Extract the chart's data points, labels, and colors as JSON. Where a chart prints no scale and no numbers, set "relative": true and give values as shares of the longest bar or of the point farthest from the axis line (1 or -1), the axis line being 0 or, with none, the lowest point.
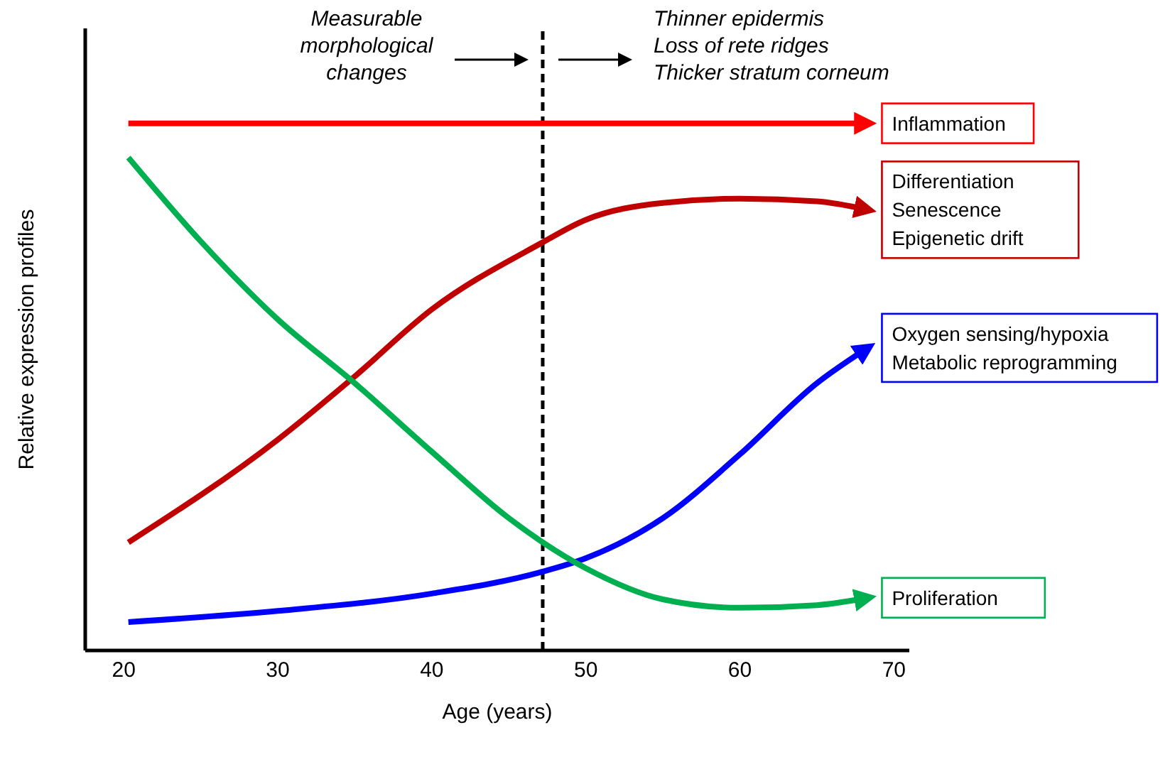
{
  "chart_data": {
    "type": "line",
    "relative": true,
    "xlabel": "Age (years)",
    "ylabel": "Relative expression profiles",
    "xlim": [
      17.5,
      71
    ],
    "xticks": [
      20,
      30,
      40,
      50,
      60,
      70
    ],
    "marker": "none",
    "line_style": "solid",
    "ref_lines": [
      {
        "axis": "x",
        "value": 47.2,
        "color": "#000000",
        "line_style": "dashed"
      }
    ],
    "annotations": [
      "Measurable\nmorphological\nchanges",
      "Thinner epidermis\nLoss of rete ridges\nThicker stratum corneum"
    ],
    "series": [
      {
        "name": "Inflammation",
        "color": "#ff0000",
        "x": [
          20.3,
          68.3
        ],
        "values": [
          1,
          1
        ]
      },
      {
        "name": "Differentiation\nSenescence\nEpigenetic drift",
        "color": "#c00000",
        "x": [
          20.3,
          30,
          35,
          40,
          47,
          50,
          55,
          60,
          65,
          68.3
        ],
        "values": [
          0.205,
          0.4,
          0.52,
          0.647,
          0.771,
          0.817,
          0.849,
          0.857,
          0.852,
          0.836
        ]
      },
      {
        "name": "Oxygen sensing/hypoxia\nMetabolic reprogramming",
        "color": "#0000ff",
        "x": [
          20.3,
          30,
          40,
          47,
          50,
          55,
          60,
          65,
          68.3
        ],
        "values": [
          0.054,
          0.075,
          0.108,
          0.148,
          0.175,
          0.251,
          0.372,
          0.507,
          0.574
        ]
      },
      {
        "name": "Proliferation",
        "color": "#00b050",
        "x": [
          20.3,
          25,
          30,
          35,
          40,
          45,
          50,
          55,
          60,
          65,
          68.3
        ],
        "values": [
          0.935,
          0.776,
          0.628,
          0.507,
          0.377,
          0.251,
          0.156,
          0.097,
          0.081,
          0.086,
          0.1
        ]
      }
    ]
  }
}
